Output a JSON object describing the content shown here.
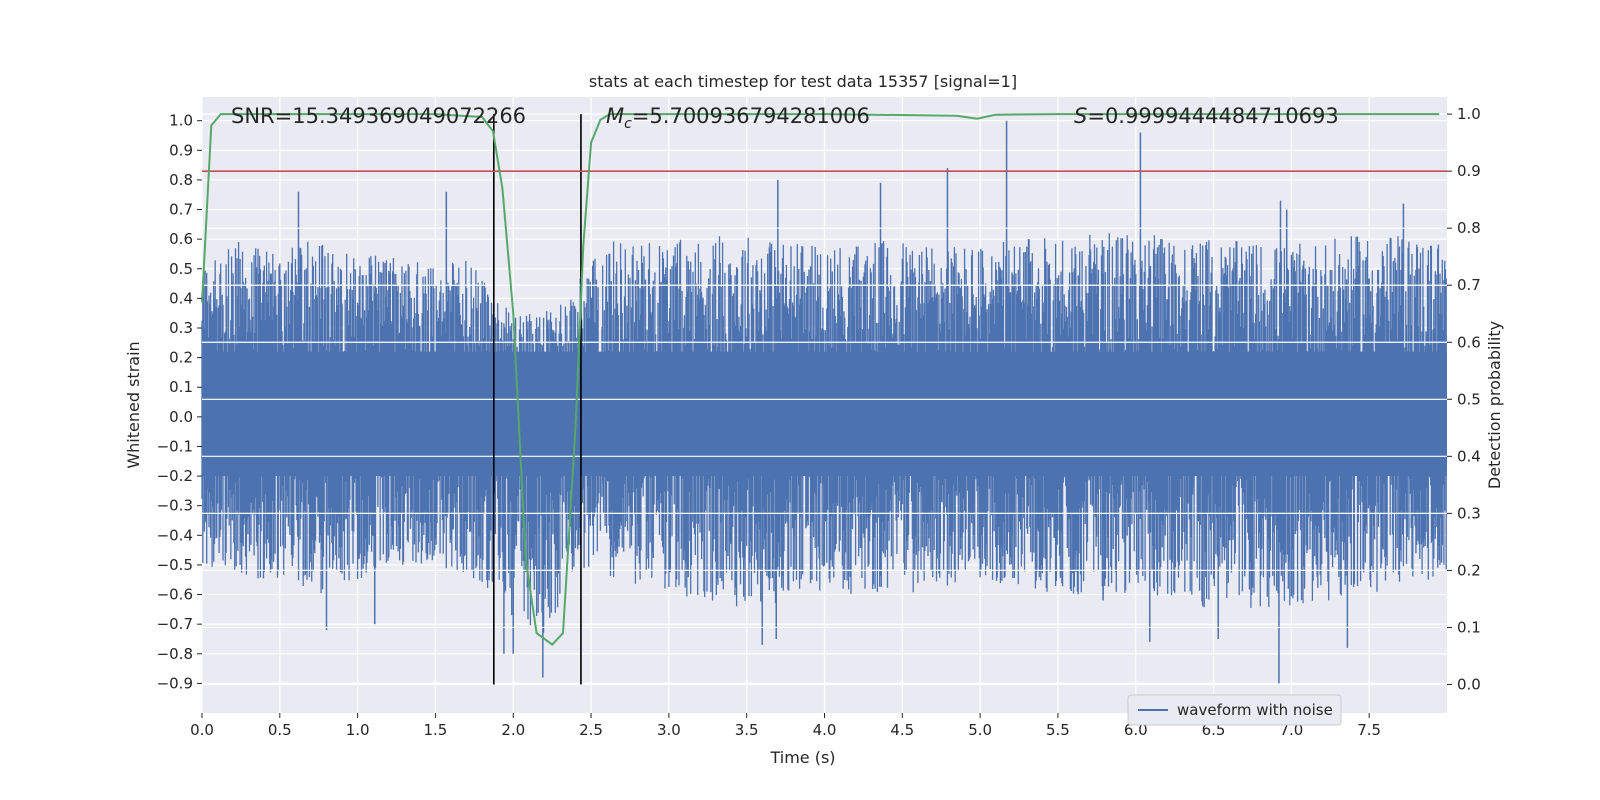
{
  "chart_data": {
    "type": "line",
    "title": "stats at each timestep for test data 15357 [signal=1]",
    "xlabel": "Time (s)",
    "ylabel_left": "Whitened strain",
    "ylabel_right": "Detection probability",
    "xlim": [
      0.0,
      8.0
    ],
    "ylim_left": [
      -1.0,
      1.08
    ],
    "ylim_right": [
      -0.05,
      1.03
    ],
    "x_ticks": [
      "0.0",
      "0.5",
      "1.0",
      "1.5",
      "2.0",
      "2.5",
      "3.0",
      "3.5",
      "4.0",
      "4.5",
      "5.0",
      "5.5",
      "6.0",
      "6.5",
      "7.0",
      "7.5"
    ],
    "x_tick_values": [
      0.0,
      0.5,
      1.0,
      1.5,
      2.0,
      2.5,
      3.0,
      3.5,
      4.0,
      4.5,
      5.0,
      5.5,
      6.0,
      6.5,
      7.0,
      7.5
    ],
    "y_left_ticks": [
      "1.0",
      "0.9",
      "0.8",
      "0.7",
      "0.6",
      "0.5",
      "0.4",
      "0.3",
      "0.2",
      "0.1",
      "0.0",
      "−0.1",
      "−0.2",
      "−0.3",
      "−0.4",
      "−0.5",
      "−0.6",
      "−0.7",
      "−0.8",
      "−0.9"
    ],
    "y_left_tick_values": [
      1.0,
      0.9,
      0.8,
      0.7,
      0.6,
      0.5,
      0.4,
      0.3,
      0.2,
      0.1,
      0.0,
      -0.1,
      -0.2,
      -0.3,
      -0.4,
      -0.5,
      -0.6,
      -0.7,
      -0.8,
      -0.9
    ],
    "y_right_ticks": [
      "1.0",
      "0.9",
      "0.8",
      "0.7",
      "0.6",
      "0.5",
      "0.4",
      "0.3",
      "0.2",
      "0.1",
      "0.0"
    ],
    "y_right_tick_values": [
      1.0,
      0.9,
      0.8,
      0.7,
      0.6,
      0.5,
      0.4,
      0.3,
      0.2,
      0.1,
      0.0
    ],
    "annotations": {
      "snr": "SNR=15.349369049072266",
      "mc_symbol": "M",
      "mc_sub": "c",
      "mc_value": "=5.700936794281006",
      "s_symbol": "S",
      "s_value": "=0.9999444484710693"
    },
    "waveform": {
      "name": "waveform with noise",
      "color": "#4c72b0",
      "envelope": {
        "x": [
          0.0,
          0.25,
          0.5,
          0.75,
          1.0,
          1.25,
          1.5,
          1.75,
          1.9,
          2.0,
          2.2,
          2.4,
          2.6,
          3.0,
          3.5,
          4.0,
          4.5,
          5.0,
          5.5,
          6.0,
          6.5,
          7.0,
          7.5,
          8.0
        ],
        "upper": [
          0.5,
          0.6,
          0.58,
          0.6,
          0.55,
          0.55,
          0.5,
          0.55,
          0.4,
          0.35,
          0.35,
          0.45,
          0.6,
          0.6,
          0.62,
          0.58,
          0.6,
          0.58,
          0.62,
          0.62,
          0.6,
          0.58,
          0.62,
          0.6
        ],
        "lower": [
          -0.5,
          -0.55,
          -0.55,
          -0.6,
          -0.55,
          -0.5,
          -0.5,
          -0.55,
          -0.6,
          -0.7,
          -0.75,
          -0.5,
          -0.55,
          -0.6,
          -0.65,
          -0.6,
          -0.6,
          -0.55,
          -0.6,
          -0.6,
          -0.65,
          -0.65,
          -0.6,
          -0.55
        ]
      },
      "spikes": [
        {
          "x": 5.17,
          "y": 1.0
        },
        {
          "x": 6.03,
          "y": 0.96
        },
        {
          "x": 4.79,
          "y": 0.84
        },
        {
          "x": 6.93,
          "y": 0.73
        },
        {
          "x": 0.62,
          "y": 0.76
        },
        {
          "x": 1.57,
          "y": 0.76
        },
        {
          "x": 3.7,
          "y": 0.8
        },
        {
          "x": 4.36,
          "y": 0.79
        },
        {
          "x": 6.97,
          "y": 0.7
        },
        {
          "x": 7.72,
          "y": 0.72
        },
        {
          "x": 0.8,
          "y": -0.72
        },
        {
          "x": 1.11,
          "y": -0.7
        },
        {
          "x": 1.94,
          "y": -0.8
        },
        {
          "x": 2.0,
          "y": -0.8
        },
        {
          "x": 2.19,
          "y": -0.88
        },
        {
          "x": 3.6,
          "y": -0.77
        },
        {
          "x": 3.69,
          "y": -0.75
        },
        {
          "x": 6.09,
          "y": -0.76
        },
        {
          "x": 6.53,
          "y": -0.75
        },
        {
          "x": 6.92,
          "y": -0.9
        },
        {
          "x": 7.36,
          "y": -0.78
        },
        {
          "x": 5.79,
          "y": -0.62
        }
      ]
    },
    "detection_probability": {
      "color": "#55a868",
      "x": [
        0.0,
        0.06,
        0.12,
        0.2,
        0.5,
        1.0,
        1.5,
        1.8,
        1.87,
        1.93,
        2.0,
        2.08,
        2.15,
        2.25,
        2.32,
        2.4,
        2.45,
        2.5,
        2.56,
        2.62,
        2.7,
        3.0,
        4.0,
        4.85,
        4.98,
        5.1,
        5.5,
        6.0,
        7.0,
        7.95
      ],
      "y": [
        0.67,
        0.98,
        1.0,
        1.0,
        1.0,
        1.0,
        1.0,
        0.995,
        0.97,
        0.87,
        0.65,
        0.22,
        0.09,
        0.07,
        0.09,
        0.45,
        0.77,
        0.95,
        0.99,
        1.0,
        1.0,
        1.0,
        1.0,
        0.997,
        0.992,
        0.999,
        1.0,
        1.0,
        1.0,
        1.0
      ]
    },
    "threshold": {
      "value": 0.9,
      "axis": "right",
      "color": "#c44e52"
    },
    "vertical_lines": [
      1.875,
      2.435
    ],
    "legend": {
      "position": "lower-right",
      "entries": [
        "waveform with noise"
      ]
    },
    "grid": true,
    "background": "#eaeaf2"
  }
}
